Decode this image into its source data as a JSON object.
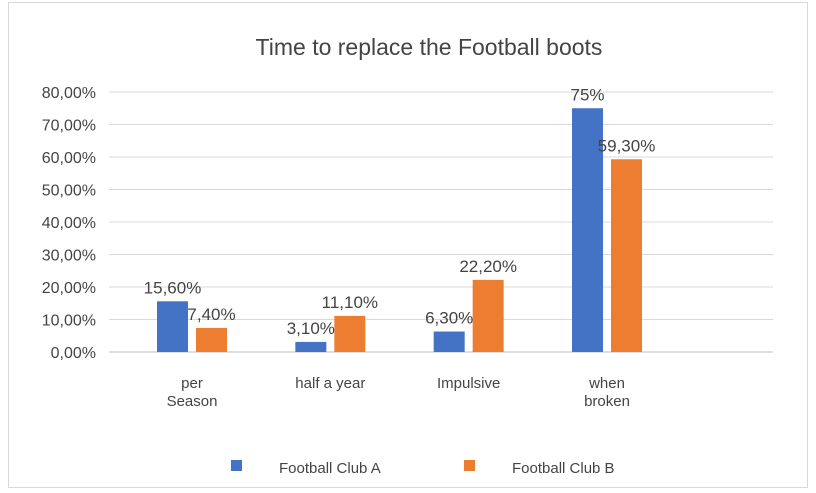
{
  "chart_data": {
    "type": "bar",
    "title": "Time to replace the Football boots",
    "categories": [
      [
        "per",
        "Season"
      ],
      [
        "half a year"
      ],
      [
        "Impulsive"
      ],
      [
        "when",
        "broken"
      ]
    ],
    "series": [
      {
        "name": "Football Club A",
        "color": "#4472c4",
        "values": [
          15.6,
          3.1,
          6.3,
          75
        ],
        "labels": [
          "15,60%",
          "3,10%",
          "6,30%",
          "75%"
        ]
      },
      {
        "name": "Football Club B",
        "color": "#ed7d31",
        "values": [
          7.4,
          11.1,
          22.2,
          59.3
        ],
        "labels": [
          "7,40%",
          "11,10%",
          "22,20%",
          "59,30%"
        ]
      }
    ],
    "yticks": [
      "0,00%",
      "10,00%",
      "20,00%",
      "30,00%",
      "40,00%",
      "50,00%",
      "60,00%",
      "70,00%",
      "80,00%"
    ],
    "ylim": [
      0,
      80
    ],
    "grid": true,
    "legend_position": "bottom"
  }
}
